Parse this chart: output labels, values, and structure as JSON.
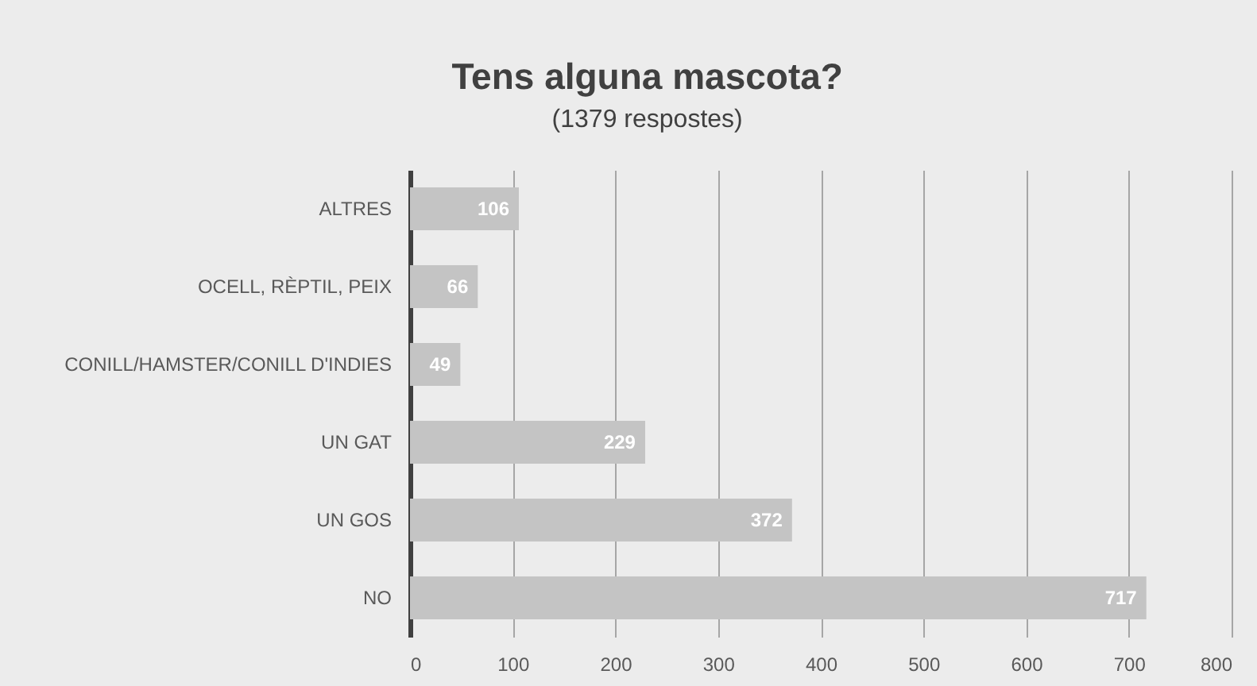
{
  "chart_data": {
    "type": "bar",
    "orientation": "horizontal",
    "title": "Tens alguna mascota?",
    "subtitle": "(1379 respostes)",
    "categories": [
      "ALTRES",
      "OCELL, RÈPTIL, PEIX",
      "CONILL/HAMSTER/CONILL D'INDIES",
      "UN GAT",
      "UN GOS",
      "NO"
    ],
    "values": [
      106,
      66,
      49,
      229,
      372,
      717
    ],
    "color": "#c4c4c4",
    "xlim": [
      0,
      800
    ],
    "xticks": [
      0,
      100,
      200,
      300,
      400,
      500,
      600,
      700,
      800
    ],
    "grid": "x",
    "data_labels": true
  }
}
